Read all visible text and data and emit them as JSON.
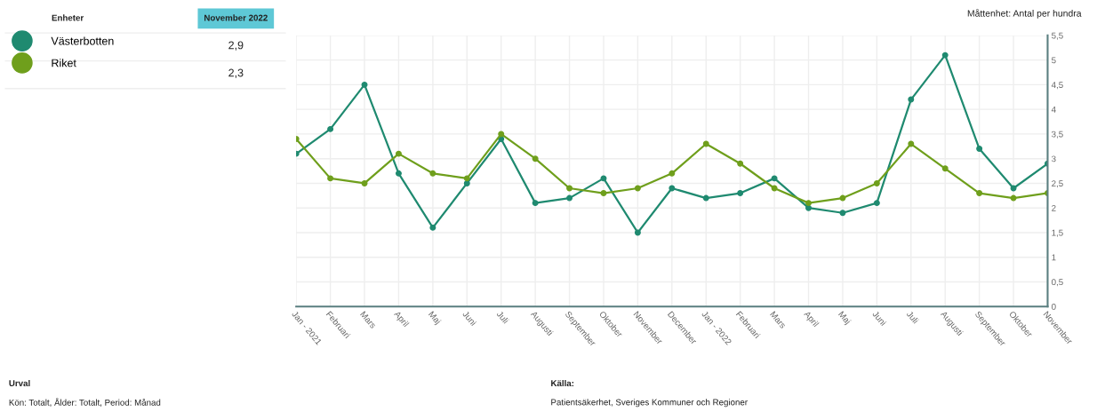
{
  "chart_data": {
    "type": "line",
    "categories": [
      "Jan - 2021",
      "Februari",
      "Mars",
      "April",
      "Maj",
      "Juni",
      "Juli",
      "Augusti",
      "September",
      "Oktober",
      "November",
      "December",
      "Jan - 2022",
      "Februari",
      "Mars",
      "April",
      "Maj",
      "Juni",
      "Juli",
      "Augusti",
      "September",
      "Oktober",
      "November"
    ],
    "series": [
      {
        "name": "Västerbotten",
        "color": "#1f8a70",
        "values": [
          3.1,
          3.6,
          4.5,
          2.7,
          1.6,
          2.5,
          3.4,
          2.1,
          2.2,
          2.6,
          1.5,
          2.4,
          2.2,
          2.3,
          2.6,
          2.0,
          1.9,
          2.1,
          4.2,
          5.1,
          3.2,
          2.4,
          2.9
        ]
      },
      {
        "name": "Riket",
        "color": "#6f9f1c",
        "values": [
          3.4,
          2.6,
          2.5,
          3.1,
          2.7,
          2.6,
          3.5,
          3.0,
          2.4,
          2.3,
          2.4,
          2.7,
          3.3,
          2.9,
          2.4,
          2.1,
          2.2,
          2.5,
          3.3,
          2.8,
          2.3,
          2.2,
          2.3
        ]
      }
    ],
    "ylabel": "Måttenhet: Antal per hundra",
    "ylim": [
      0,
      5.5
    ],
    "yticks": [
      0,
      {
        "value": 0.5,
        "label": "0,5"
      },
      1,
      {
        "value": 1.5,
        "label": "1,5"
      },
      2,
      {
        "value": 2.5,
        "label": "2,5"
      },
      3,
      {
        "value": 3.5,
        "label": "3,5"
      },
      4,
      {
        "value": 4.5,
        "label": "4,5"
      },
      5,
      {
        "value": 5.5,
        "label": "5,5"
      }
    ],
    "grid": true,
    "marker": "circle",
    "line_style": "solid",
    "legend": "top left",
    "annotations": [
      "Enheter",
      "November 2022",
      "2,9",
      "2,3",
      "Urval",
      "Kön: Totalt, Ålder: Totalt, Period: Månad",
      "Källa:",
      "Patientsäkerhet, Sveriges Kommuner och Regioner"
    ]
  }
}
